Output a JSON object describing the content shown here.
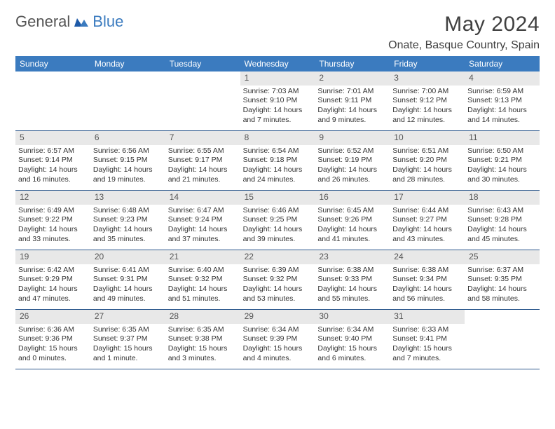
{
  "brand": {
    "part1": "General",
    "part2": "Blue"
  },
  "title": "May 2024",
  "location": "Onate, Basque Country, Spain",
  "colors": {
    "header_bg": "#3b7bbf",
    "daynum_bg": "#e8e8e8",
    "week_border": "#2f5b8f",
    "text": "#333333",
    "title_text": "#404040"
  },
  "day_names": [
    "Sunday",
    "Monday",
    "Tuesday",
    "Wednesday",
    "Thursday",
    "Friday",
    "Saturday"
  ],
  "weeks": [
    [
      {
        "day": "",
        "sunrise": "",
        "sunset": "",
        "daylight": "",
        "empty": true
      },
      {
        "day": "",
        "sunrise": "",
        "sunset": "",
        "daylight": "",
        "empty": true
      },
      {
        "day": "",
        "sunrise": "",
        "sunset": "",
        "daylight": "",
        "empty": true
      },
      {
        "day": "1",
        "sunrise": "Sunrise: 7:03 AM",
        "sunset": "Sunset: 9:10 PM",
        "daylight": "Daylight: 14 hours and 7 minutes."
      },
      {
        "day": "2",
        "sunrise": "Sunrise: 7:01 AM",
        "sunset": "Sunset: 9:11 PM",
        "daylight": "Daylight: 14 hours and 9 minutes."
      },
      {
        "day": "3",
        "sunrise": "Sunrise: 7:00 AM",
        "sunset": "Sunset: 9:12 PM",
        "daylight": "Daylight: 14 hours and 12 minutes."
      },
      {
        "day": "4",
        "sunrise": "Sunrise: 6:59 AM",
        "sunset": "Sunset: 9:13 PM",
        "daylight": "Daylight: 14 hours and 14 minutes."
      }
    ],
    [
      {
        "day": "5",
        "sunrise": "Sunrise: 6:57 AM",
        "sunset": "Sunset: 9:14 PM",
        "daylight": "Daylight: 14 hours and 16 minutes."
      },
      {
        "day": "6",
        "sunrise": "Sunrise: 6:56 AM",
        "sunset": "Sunset: 9:15 PM",
        "daylight": "Daylight: 14 hours and 19 minutes."
      },
      {
        "day": "7",
        "sunrise": "Sunrise: 6:55 AM",
        "sunset": "Sunset: 9:17 PM",
        "daylight": "Daylight: 14 hours and 21 minutes."
      },
      {
        "day": "8",
        "sunrise": "Sunrise: 6:54 AM",
        "sunset": "Sunset: 9:18 PM",
        "daylight": "Daylight: 14 hours and 24 minutes."
      },
      {
        "day": "9",
        "sunrise": "Sunrise: 6:52 AM",
        "sunset": "Sunset: 9:19 PM",
        "daylight": "Daylight: 14 hours and 26 minutes."
      },
      {
        "day": "10",
        "sunrise": "Sunrise: 6:51 AM",
        "sunset": "Sunset: 9:20 PM",
        "daylight": "Daylight: 14 hours and 28 minutes."
      },
      {
        "day": "11",
        "sunrise": "Sunrise: 6:50 AM",
        "sunset": "Sunset: 9:21 PM",
        "daylight": "Daylight: 14 hours and 30 minutes."
      }
    ],
    [
      {
        "day": "12",
        "sunrise": "Sunrise: 6:49 AM",
        "sunset": "Sunset: 9:22 PM",
        "daylight": "Daylight: 14 hours and 33 minutes."
      },
      {
        "day": "13",
        "sunrise": "Sunrise: 6:48 AM",
        "sunset": "Sunset: 9:23 PM",
        "daylight": "Daylight: 14 hours and 35 minutes."
      },
      {
        "day": "14",
        "sunrise": "Sunrise: 6:47 AM",
        "sunset": "Sunset: 9:24 PM",
        "daylight": "Daylight: 14 hours and 37 minutes."
      },
      {
        "day": "15",
        "sunrise": "Sunrise: 6:46 AM",
        "sunset": "Sunset: 9:25 PM",
        "daylight": "Daylight: 14 hours and 39 minutes."
      },
      {
        "day": "16",
        "sunrise": "Sunrise: 6:45 AM",
        "sunset": "Sunset: 9:26 PM",
        "daylight": "Daylight: 14 hours and 41 minutes."
      },
      {
        "day": "17",
        "sunrise": "Sunrise: 6:44 AM",
        "sunset": "Sunset: 9:27 PM",
        "daylight": "Daylight: 14 hours and 43 minutes."
      },
      {
        "day": "18",
        "sunrise": "Sunrise: 6:43 AM",
        "sunset": "Sunset: 9:28 PM",
        "daylight": "Daylight: 14 hours and 45 minutes."
      }
    ],
    [
      {
        "day": "19",
        "sunrise": "Sunrise: 6:42 AM",
        "sunset": "Sunset: 9:29 PM",
        "daylight": "Daylight: 14 hours and 47 minutes."
      },
      {
        "day": "20",
        "sunrise": "Sunrise: 6:41 AM",
        "sunset": "Sunset: 9:31 PM",
        "daylight": "Daylight: 14 hours and 49 minutes."
      },
      {
        "day": "21",
        "sunrise": "Sunrise: 6:40 AM",
        "sunset": "Sunset: 9:32 PM",
        "daylight": "Daylight: 14 hours and 51 minutes."
      },
      {
        "day": "22",
        "sunrise": "Sunrise: 6:39 AM",
        "sunset": "Sunset: 9:32 PM",
        "daylight": "Daylight: 14 hours and 53 minutes."
      },
      {
        "day": "23",
        "sunrise": "Sunrise: 6:38 AM",
        "sunset": "Sunset: 9:33 PM",
        "daylight": "Daylight: 14 hours and 55 minutes."
      },
      {
        "day": "24",
        "sunrise": "Sunrise: 6:38 AM",
        "sunset": "Sunset: 9:34 PM",
        "daylight": "Daylight: 14 hours and 56 minutes."
      },
      {
        "day": "25",
        "sunrise": "Sunrise: 6:37 AM",
        "sunset": "Sunset: 9:35 PM",
        "daylight": "Daylight: 14 hours and 58 minutes."
      }
    ],
    [
      {
        "day": "26",
        "sunrise": "Sunrise: 6:36 AM",
        "sunset": "Sunset: 9:36 PM",
        "daylight": "Daylight: 15 hours and 0 minutes."
      },
      {
        "day": "27",
        "sunrise": "Sunrise: 6:35 AM",
        "sunset": "Sunset: 9:37 PM",
        "daylight": "Daylight: 15 hours and 1 minute."
      },
      {
        "day": "28",
        "sunrise": "Sunrise: 6:35 AM",
        "sunset": "Sunset: 9:38 PM",
        "daylight": "Daylight: 15 hours and 3 minutes."
      },
      {
        "day": "29",
        "sunrise": "Sunrise: 6:34 AM",
        "sunset": "Sunset: 9:39 PM",
        "daylight": "Daylight: 15 hours and 4 minutes."
      },
      {
        "day": "30",
        "sunrise": "Sunrise: 6:34 AM",
        "sunset": "Sunset: 9:40 PM",
        "daylight": "Daylight: 15 hours and 6 minutes."
      },
      {
        "day": "31",
        "sunrise": "Sunrise: 6:33 AM",
        "sunset": "Sunset: 9:41 PM",
        "daylight": "Daylight: 15 hours and 7 minutes."
      },
      {
        "day": "",
        "sunrise": "",
        "sunset": "",
        "daylight": "",
        "empty": true
      }
    ]
  ]
}
